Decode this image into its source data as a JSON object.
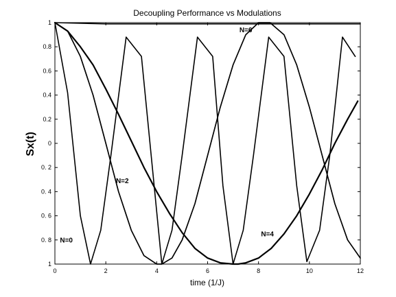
{
  "chart_data": {
    "type": "line",
    "title": "Decoupling Performance vs Modulations",
    "xlabel": "time (1/J)",
    "ylabel": "Sx(t)",
    "xlim": [
      0,
      12
    ],
    "ylim": [
      -1,
      1
    ],
    "x_ticks": [
      0,
      2,
      4,
      6,
      8,
      10,
      12
    ],
    "x_tick_labels": [
      "0",
      "2",
      "4",
      "6",
      "8",
      "10",
      "12"
    ],
    "y_ticks": [
      1,
      0.8,
      0.6,
      0.4,
      0.2,
      0,
      -0.2,
      -0.4,
      -0.6,
      -0.8,
      -1
    ],
    "y_tick_labels": [
      "1",
      "0.8",
      "0.6",
      "0.4",
      "0.2",
      "0",
      "0. 2",
      "0. 4",
      "0. 6",
      "0. 8",
      "1"
    ],
    "grid": false,
    "series": [
      {
        "name": "N=0",
        "x": [
          0,
          0.5,
          1.0,
          1.4,
          1.8,
          2.2,
          2.8,
          3.4,
          3.9,
          4.2,
          4.6,
          5.0,
          5.6,
          6.2,
          6.6,
          7.0,
          7.4,
          7.8,
          8.4,
          9.0,
          9.5,
          9.9,
          10.4,
          10.8,
          11.3,
          11.8
        ],
        "y": [
          1,
          0.42,
          -0.6,
          -1,
          -0.72,
          -0.1,
          0.88,
          0.72,
          -0.35,
          -1,
          -0.72,
          -0.1,
          0.88,
          0.72,
          -0.35,
          -1,
          -0.72,
          -0.1,
          0.88,
          0.72,
          -0.35,
          -0.98,
          -0.72,
          -0.1,
          0.88,
          0.72
        ]
      },
      {
        "name": "N=2",
        "x": [
          0,
          0.5,
          1.0,
          1.5,
          2.0,
          2.5,
          3.0,
          3.5,
          4.0,
          4.2,
          4.6,
          5.0,
          5.5,
          6.0,
          6.5,
          7.0,
          7.5,
          8.0,
          8.45,
          9.0,
          9.5,
          10.0,
          10.5,
          11.0,
          11.5,
          12.0
        ],
        "y": [
          1,
          0.93,
          0.72,
          0.4,
          0.0,
          -0.4,
          -0.72,
          -0.93,
          -1,
          -1,
          -0.95,
          -0.8,
          -0.5,
          -0.1,
          0.3,
          0.65,
          0.9,
          1.0,
          1.0,
          0.9,
          0.65,
          0.3,
          -0.1,
          -0.5,
          -0.8,
          -0.95
        ]
      },
      {
        "name": "N=4",
        "x": [
          0,
          0.5,
          1.0,
          1.5,
          2.0,
          2.5,
          3.0,
          3.5,
          4.0,
          4.5,
          5.0,
          5.5,
          6.0,
          6.5,
          7.0,
          7.2,
          7.5,
          8.0,
          8.5,
          9.0,
          9.5,
          10.0,
          10.5,
          11.0,
          11.5,
          11.9
        ],
        "y": [
          1,
          0.93,
          0.8,
          0.65,
          0.45,
          0.24,
          0.02,
          -0.2,
          -0.4,
          -0.58,
          -0.74,
          -0.87,
          -0.95,
          -0.99,
          -1,
          -1,
          -0.99,
          -0.95,
          -0.87,
          -0.75,
          -0.6,
          -0.42,
          -0.22,
          0.0,
          0.2,
          0.35
        ]
      },
      {
        "name": "N=6",
        "x": [
          0,
          2,
          4,
          6,
          8,
          10,
          12
        ],
        "y": [
          1,
          0.99,
          0.99,
          0.99,
          0.99,
          0.99,
          0.99
        ]
      }
    ],
    "annotations": [
      {
        "text": "N=6",
        "x": 7.5,
        "y": 0.92
      },
      {
        "text": "N=2",
        "x": 2.65,
        "y": -0.33
      },
      {
        "text": "N=0",
        "x": 0.45,
        "y": -0.82
      },
      {
        "text": "N=4",
        "x": 8.35,
        "y": -0.77
      }
    ]
  }
}
